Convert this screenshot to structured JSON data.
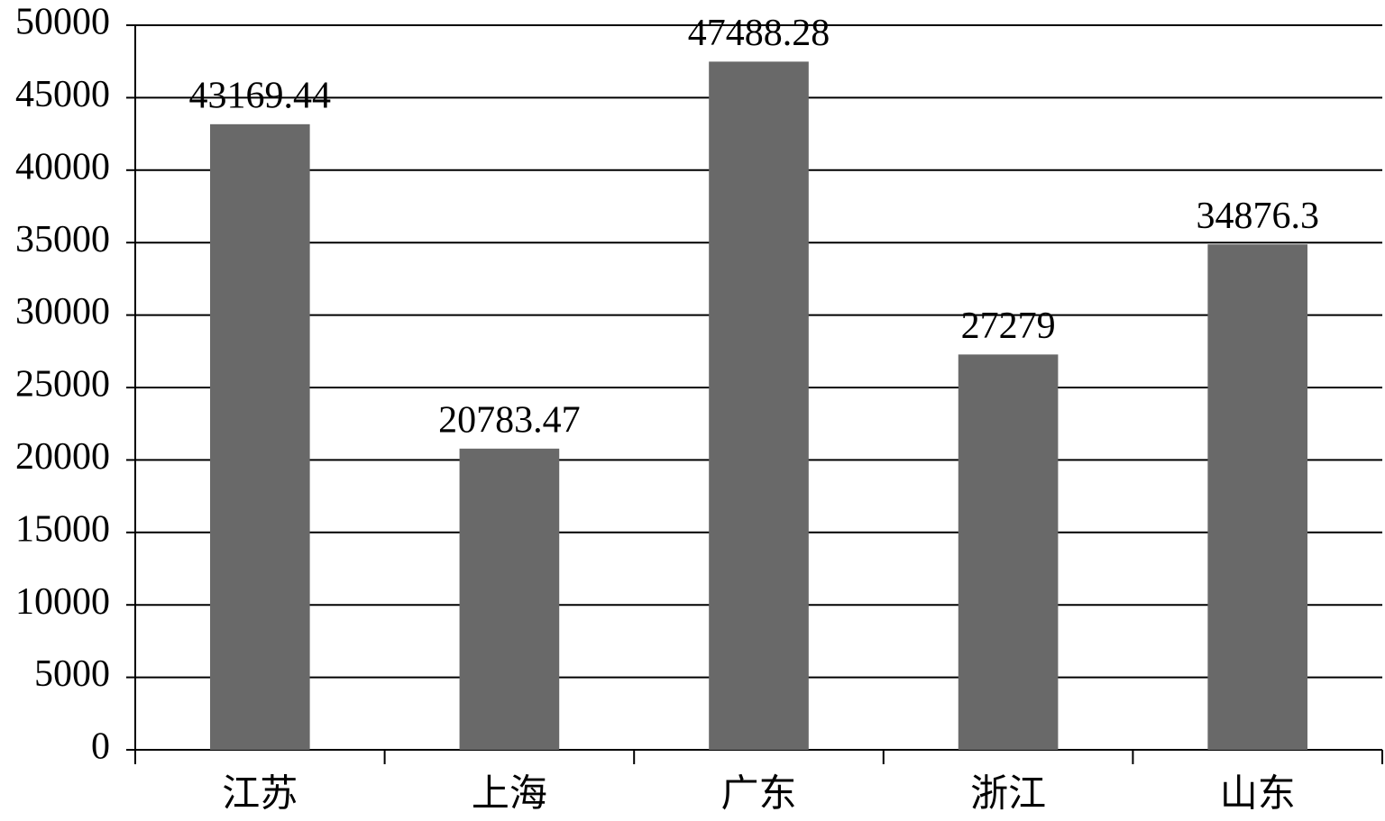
{
  "chart_data": {
    "type": "bar",
    "categories": [
      "江苏",
      "上海",
      "广东",
      "浙江",
      "山东"
    ],
    "values": [
      43169.44,
      20783.47,
      47488.28,
      27279,
      34876.3
    ],
    "color": "#696969",
    "ylim": [
      0,
      50000
    ],
    "yticks": [
      0,
      5000,
      10000,
      15000,
      20000,
      25000,
      30000,
      35000,
      40000,
      45000,
      50000
    ],
    "grid": true
  }
}
